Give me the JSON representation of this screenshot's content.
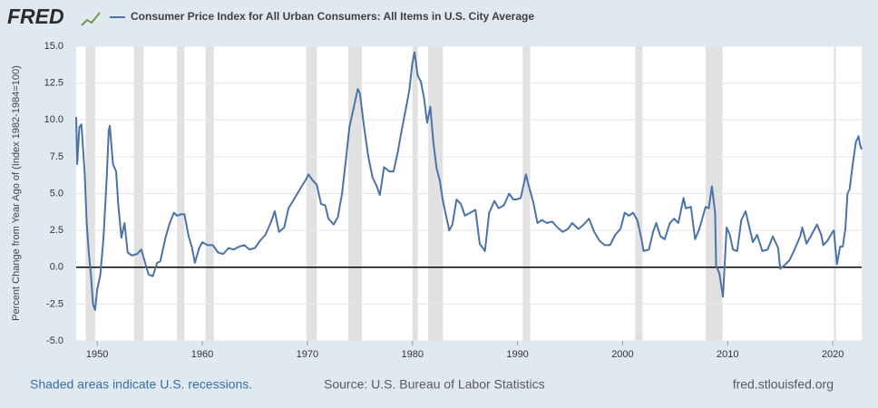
{
  "chart_data": {
    "type": "line",
    "brand": "FRED",
    "ylabel": "Percent Change from Year Ago of (Index 1982-1984=100)",
    "note": "Shaded areas indicate U.S. recessions.",
    "source": "Source: U.S. Bureau of Labor Statistics",
    "site": "fred.stlouisfed.org",
    "legend": "top",
    "grid": true,
    "zero_line": true,
    "xlim": [
      1948,
      2022.75
    ],
    "xticks": [
      1950,
      1960,
      1970,
      1980,
      1990,
      2000,
      2010,
      2020
    ],
    "ylim": [
      -5,
      15
    ],
    "yticks": [
      {
        "value": -5,
        "label": "-5.0"
      },
      {
        "value": -2.5,
        "label": "-2.5"
      },
      {
        "value": 0,
        "label": "0.0"
      },
      {
        "value": 2.5,
        "label": "2.5"
      },
      {
        "value": 5,
        "label": "5.0"
      },
      {
        "value": 7.5,
        "label": "7.5"
      },
      {
        "value": 10,
        "label": "10.0"
      },
      {
        "value": 12.5,
        "label": "12.5"
      },
      {
        "value": 15,
        "label": "15.0"
      }
    ],
    "recession_color": "#e1e1e1",
    "recessions": [
      [
        1948.9,
        1949.8
      ],
      [
        1953.5,
        1954.4
      ],
      [
        1957.6,
        1958.3
      ],
      [
        1960.3,
        1961.1
      ],
      [
        1969.9,
        1970.9
      ],
      [
        1973.9,
        1975.2
      ],
      [
        1980.0,
        1980.5
      ],
      [
        1981.5,
        1982.9
      ],
      [
        1990.5,
        1991.2
      ],
      [
        2001.2,
        2001.9
      ],
      [
        2007.9,
        2009.5
      ],
      [
        2020.1,
        2020.3
      ]
    ],
    "x": [
      1948.0,
      1948.1,
      1948.3,
      1948.5,
      1948.8,
      1949.0,
      1949.2,
      1949.4,
      1949.6,
      1949.8,
      1950.0,
      1950.3,
      1950.6,
      1950.9,
      1951.1,
      1951.2,
      1951.5,
      1951.8,
      1952.0,
      1952.3,
      1952.6,
      1952.9,
      1953.3,
      1953.8,
      1954.2,
      1954.6,
      1954.9,
      1955.3,
      1955.7,
      1956.0,
      1956.5,
      1956.9,
      1957.3,
      1957.6,
      1958.0,
      1958.3,
      1958.7,
      1959.0,
      1959.3,
      1959.7,
      1960.0,
      1960.5,
      1961.0,
      1961.5,
      1962.0,
      1962.5,
      1963.0,
      1963.5,
      1964.0,
      1964.5,
      1965.0,
      1965.5,
      1966.0,
      1966.5,
      1966.9,
      1967.3,
      1967.8,
      1968.2,
      1968.8,
      1969.3,
      1969.9,
      1970.1,
      1970.5,
      1970.9,
      1971.3,
      1971.7,
      1972.0,
      1972.5,
      1972.9,
      1973.3,
      1973.7,
      1974.0,
      1974.4,
      1974.8,
      1975.0,
      1975.4,
      1975.8,
      1976.2,
      1976.6,
      1976.9,
      1977.3,
      1977.8,
      1978.2,
      1978.6,
      1978.9,
      1979.3,
      1979.7,
      1980.0,
      1980.2,
      1980.5,
      1980.8,
      1981.1,
      1981.4,
      1981.7,
      1982.0,
      1982.3,
      1982.6,
      1982.9,
      1983.2,
      1983.5,
      1983.8,
      1984.2,
      1984.6,
      1985.0,
      1985.5,
      1986.0,
      1986.4,
      1986.9,
      1987.3,
      1987.8,
      1988.2,
      1988.7,
      1989.2,
      1989.6,
      1989.9,
      1990.3,
      1990.8,
      1991.0,
      1991.5,
      1991.9,
      1992.3,
      1992.8,
      1993.3,
      1993.8,
      1994.3,
      1994.8,
      1995.2,
      1995.8,
      1996.3,
      1996.8,
      1997.3,
      1997.8,
      1998.3,
      1998.8,
      1999.3,
      1999.8,
      2000.2,
      2000.6,
      2001.0,
      2001.4,
      2001.8,
      2002.0,
      2002.5,
      2002.9,
      2003.2,
      2003.6,
      2004.0,
      2004.5,
      2004.9,
      2005.3,
      2005.8,
      2006.0,
      2006.5,
      2006.9,
      2007.3,
      2007.9,
      2008.2,
      2008.5,
      2008.8,
      2008.9,
      2009.2,
      2009.55,
      2009.9,
      2010.2,
      2010.5,
      2010.9,
      2011.3,
      2011.7,
      2012.0,
      2012.4,
      2012.8,
      2013.3,
      2013.8,
      2014.3,
      2014.8,
      2015.0,
      2015.5,
      2015.9,
      2016.3,
      2016.9,
      2017.1,
      2017.5,
      2017.9,
      2018.5,
      2018.9,
      2019.1,
      2019.5,
      2019.9,
      2020.1,
      2020.4,
      2020.7,
      2020.95,
      2021.2,
      2021.4,
      2021.6,
      2021.9,
      2022.2,
      2022.45,
      2022.6,
      2022.75
    ],
    "series": [
      {
        "name": "Consumer Price Index for All Urban Consumers: All Items in U.S. City Average",
        "color": "#4b72a9",
        "values": [
          10.2,
          7.0,
          9.5,
          9.7,
          6.5,
          3.0,
          1.0,
          -0.5,
          -2.5,
          -2.9,
          -1.5,
          -0.5,
          2.0,
          6.0,
          9.3,
          9.6,
          7.0,
          6.5,
          4.3,
          2.0,
          3.0,
          1.0,
          0.8,
          0.9,
          1.2,
          0.2,
          -0.5,
          -0.6,
          0.3,
          0.4,
          2.0,
          3.0,
          3.7,
          3.5,
          3.6,
          3.6,
          2.1,
          1.4,
          0.3,
          1.3,
          1.7,
          1.5,
          1.5,
          1.0,
          0.9,
          1.3,
          1.2,
          1.4,
          1.5,
          1.2,
          1.3,
          1.8,
          2.2,
          3.0,
          3.8,
          2.4,
          2.7,
          4.0,
          4.7,
          5.3,
          6.0,
          6.3,
          5.9,
          5.6,
          4.3,
          4.2,
          3.3,
          2.9,
          3.4,
          5.0,
          7.5,
          9.5,
          10.8,
          12.1,
          11.8,
          9.5,
          7.5,
          6.1,
          5.5,
          4.9,
          6.8,
          6.5,
          6.5,
          7.8,
          9.0,
          10.5,
          12.0,
          13.9,
          14.6,
          13.0,
          12.6,
          11.5,
          9.8,
          10.9,
          8.4,
          6.7,
          5.9,
          4.5,
          3.5,
          2.5,
          2.9,
          4.6,
          4.3,
          3.5,
          3.7,
          3.9,
          1.6,
          1.1,
          3.7,
          4.5,
          4.0,
          4.2,
          5.0,
          4.6,
          4.6,
          4.7,
          6.3,
          5.7,
          4.4,
          3.0,
          3.2,
          3.0,
          3.1,
          2.7,
          2.4,
          2.6,
          3.0,
          2.6,
          2.9,
          3.3,
          2.4,
          1.8,
          1.5,
          1.5,
          2.2,
          2.6,
          3.7,
          3.5,
          3.7,
          3.2,
          1.9,
          1.1,
          1.2,
          2.4,
          3.0,
          2.1,
          1.9,
          3.0,
          3.3,
          3.0,
          4.7,
          4.0,
          4.1,
          1.9,
          2.6,
          4.1,
          4.0,
          5.5,
          3.7,
          0.1,
          -0.4,
          -2.0,
          2.7,
          2.2,
          1.2,
          1.1,
          3.2,
          3.8,
          2.9,
          1.7,
          2.2,
          1.1,
          1.2,
          2.1,
          1.3,
          -0.1,
          0.2,
          0.5,
          1.1,
          2.1,
          2.7,
          1.6,
          2.1,
          2.9,
          2.2,
          1.5,
          1.8,
          2.3,
          2.5,
          0.2,
          1.4,
          1.4,
          2.6,
          5.0,
          5.3,
          7.0,
          8.5,
          8.9,
          8.3,
          8.0
        ]
      }
    ]
  }
}
